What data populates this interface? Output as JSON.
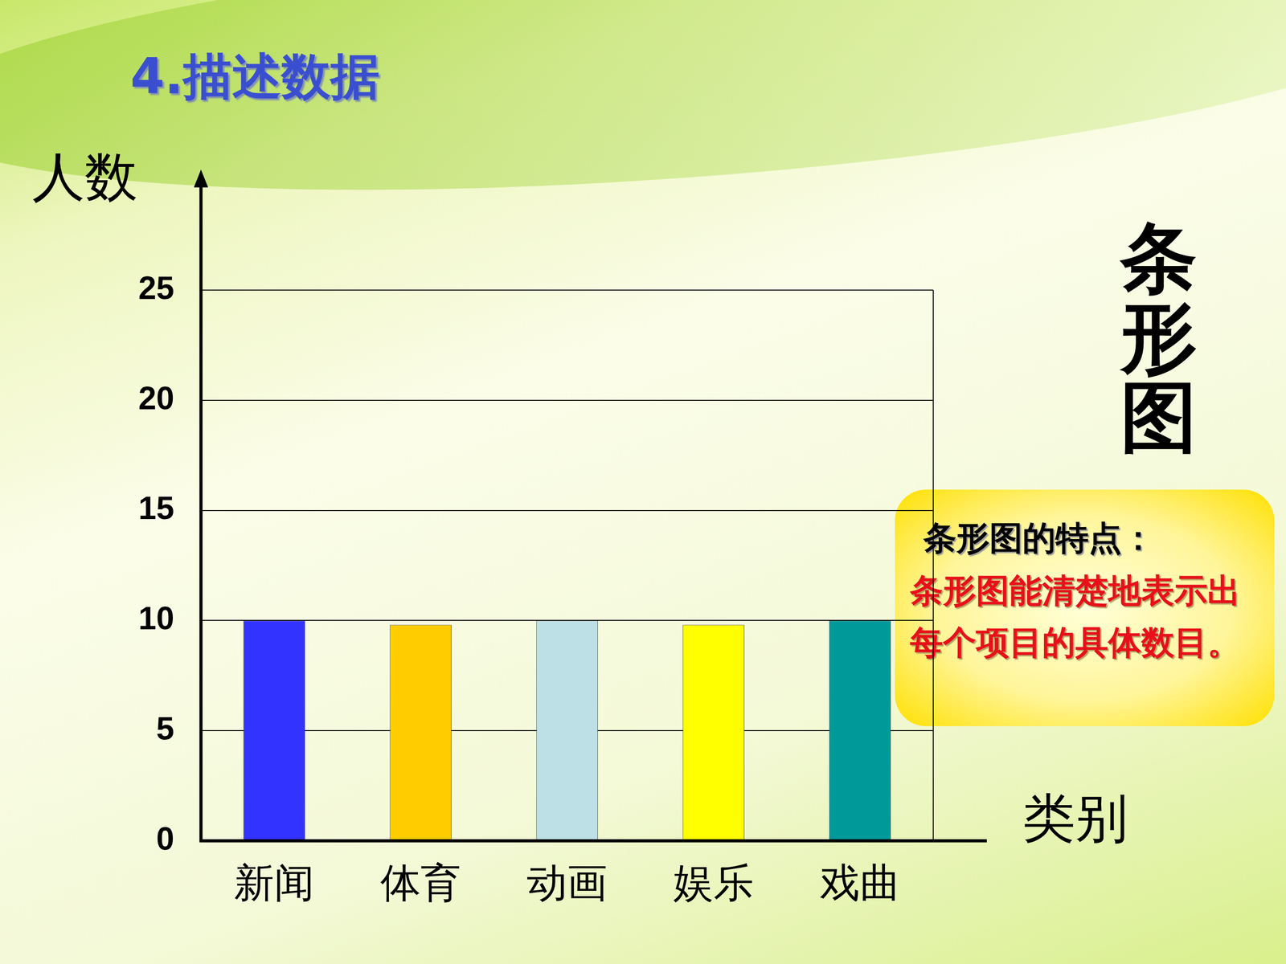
{
  "chart_data": {
    "type": "bar",
    "title": "4.描述数据",
    "y_label": "人数",
    "x_label": "类别",
    "categories": [
      "新闻",
      "体育",
      "动画",
      "娱乐",
      "戏曲"
    ],
    "values": [
      10,
      9.8,
      10,
      9.8,
      10
    ],
    "colors": [
      "#3333ff",
      "#ffcc00",
      "#bde0e6",
      "#ffff00",
      "#009999"
    ],
    "ylim": [
      0,
      25
    ],
    "yticks": [
      0,
      5,
      10,
      15,
      20,
      25
    ],
    "grid": true,
    "side_title": "条形图",
    "note": {
      "heading": "条形图的特点：",
      "text": "条形图能清楚地表示出每个项目的具体数目。"
    }
  }
}
